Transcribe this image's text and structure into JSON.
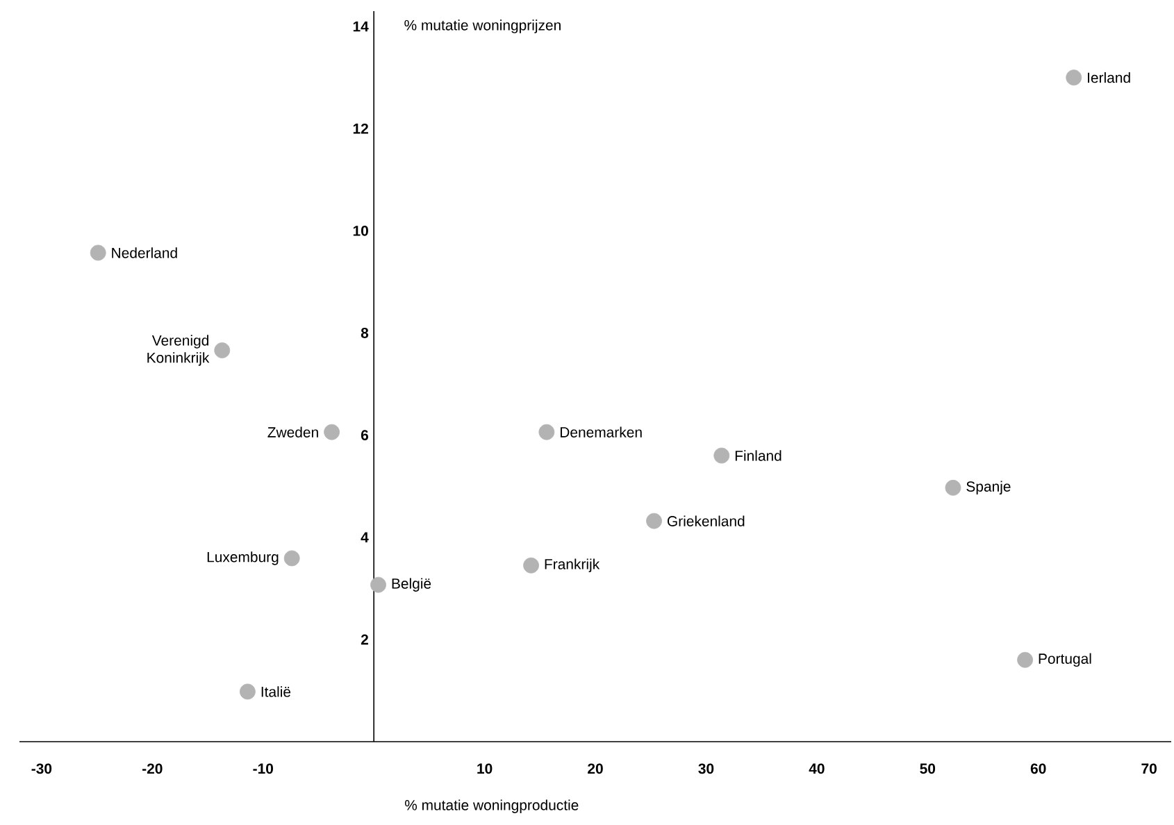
{
  "chart_data": {
    "type": "scatter",
    "xlabel": "% mutatie woningproductie",
    "ylabel": "% mutatie woningprijzen",
    "xlim": [
      -32,
      72
    ],
    "ylim": [
      0,
      14.3
    ],
    "xticks": [
      -30,
      -20,
      -10,
      10,
      20,
      30,
      40,
      50,
      60,
      70
    ],
    "yticks": [
      2,
      4,
      6,
      8,
      10,
      12,
      14
    ],
    "marker": "circle",
    "series": [
      {
        "color": "#b3b3b3",
        "x": [
          63.2,
          -24.9,
          -13.7,
          -3.8,
          15.6,
          31.4,
          52.3,
          25.3,
          14.2,
          -7.4,
          0.4,
          58.8,
          -11.4
        ],
        "values": [
          13.0,
          9.57,
          7.66,
          6.06,
          6.06,
          5.6,
          4.97,
          4.32,
          3.45,
          3.59,
          3.07,
          1.6,
          0.98
        ]
      }
    ],
    "annotations": [
      {
        "text": "Ierland",
        "x": 63.2,
        "y": 13.0
      },
      {
        "text": "Nederland",
        "x": -24.9,
        "y": 9.57
      },
      {
        "text": "Verenigd Koninkrijk",
        "x": -13.7,
        "y": 7.66
      },
      {
        "text": "Zweden",
        "x": -3.8,
        "y": 6.06
      },
      {
        "text": "Denemarken",
        "x": 15.6,
        "y": 6.06
      },
      {
        "text": "Finland",
        "x": 31.4,
        "y": 5.6
      },
      {
        "text": "Spanje",
        "x": 52.3,
        "y": 4.97
      },
      {
        "text": "Griekenland",
        "x": 25.3,
        "y": 4.32
      },
      {
        "text": "Frankrijk",
        "x": 14.2,
        "y": 3.45
      },
      {
        "text": "Luxemburg",
        "x": -7.4,
        "y": 3.59
      },
      {
        "text": "België",
        "x": 0.4,
        "y": 3.07
      },
      {
        "text": "Portugal",
        "x": 58.8,
        "y": 1.6
      },
      {
        "text": "Italië",
        "x": -11.4,
        "y": 0.98
      }
    ]
  }
}
